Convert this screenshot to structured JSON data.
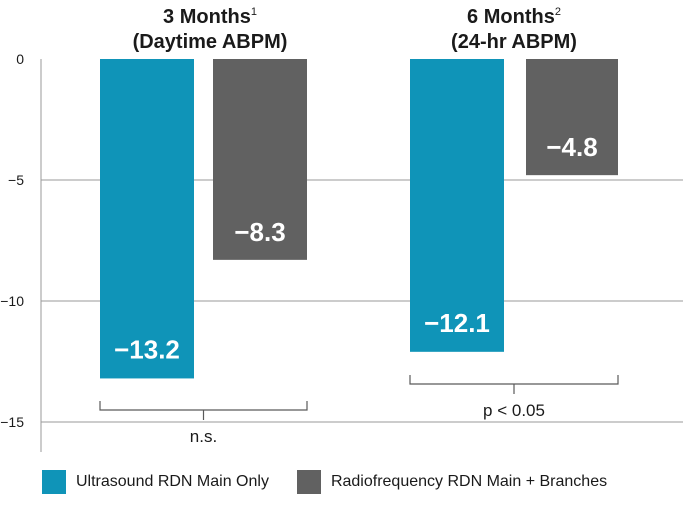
{
  "chart_data": {
    "type": "bar",
    "groups": [
      {
        "title": "3 Months",
        "title_sup": "1",
        "subtitle": "(Daytime ABPM)",
        "significance": "n.s."
      },
      {
        "title": "6 Months",
        "title_sup": "2",
        "subtitle": "(24-hr ABPM)",
        "significance": "p < 0.05"
      }
    ],
    "series": [
      {
        "name": "Ultrasound RDN Main Only",
        "color": "#0f94b8",
        "values": [
          -13.2,
          -12.1
        ],
        "labels": [
          "−13.2",
          "−12.1"
        ]
      },
      {
        "name": "Radiofrequency RDN Main + Branches",
        "color": "#616161",
        "values": [
          -8.3,
          -4.8
        ],
        "labels": [
          "−8.3",
          "−4.8"
        ]
      }
    ],
    "ylim": [
      -16,
      0
    ],
    "yticks": [
      0,
      -5,
      -10,
      -15
    ],
    "ytick_labels": [
      "0",
      "−5",
      "−10",
      "−15"
    ],
    "grid": true,
    "legend_position": "bottom"
  }
}
